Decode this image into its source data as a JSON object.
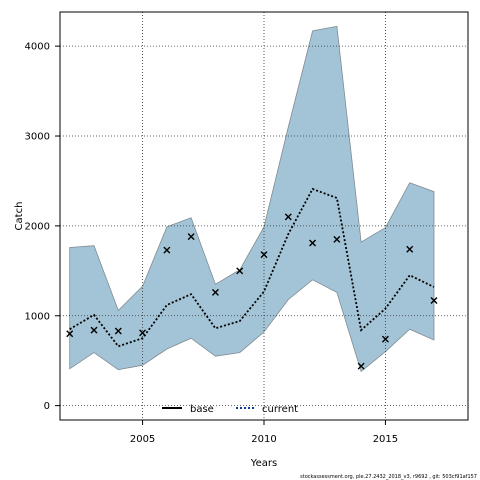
{
  "chart_data": {
    "type": "line",
    "xlabel": "Years",
    "ylabel": "Catch",
    "xlim": [
      2001.6,
      2018.4
    ],
    "ylim": [
      -160,
      4380
    ],
    "x_ticks": [
      2005,
      2010,
      2015
    ],
    "y_ticks": [
      0,
      1000,
      2000,
      3000,
      4000
    ],
    "grid": true,
    "legend": {
      "position": "bottom-center",
      "entries": [
        "base",
        "current"
      ]
    },
    "x": [
      2002,
      2003,
      2004,
      2005,
      2006,
      2007,
      2008,
      2009,
      2010,
      2011,
      2012,
      2013,
      2014,
      2015,
      2016,
      2017
    ],
    "band": {
      "color": "#a3c4d6",
      "upper": [
        1760,
        1780,
        1060,
        1330,
        1990,
        2090,
        1350,
        1510,
        1990,
        3100,
        4170,
        4220,
        1820,
        1980,
        2480,
        2380
      ],
      "lower": [
        410,
        590,
        400,
        450,
        630,
        750,
        550,
        590,
        820,
        1180,
        1400,
        1260,
        380,
        600,
        850,
        730
      ]
    },
    "series": [
      {
        "name": "current",
        "style": "dotted",
        "color": "#000000",
        "values": [
          850,
          1010,
          660,
          750,
          1120,
          1240,
          860,
          940,
          1270,
          1910,
          2410,
          2310,
          840,
          1080,
          1450,
          1320
        ]
      }
    ],
    "observations": {
      "marker": "x",
      "values": [
        800,
        840,
        830,
        810,
        1730,
        1880,
        1260,
        1500,
        1680,
        2100,
        1810,
        1850,
        440,
        740,
        1740,
        1170
      ]
    }
  },
  "footer": "stockassessment.org, ple.27.2432_2018_v3, r9692 , git: 503cf91af157"
}
